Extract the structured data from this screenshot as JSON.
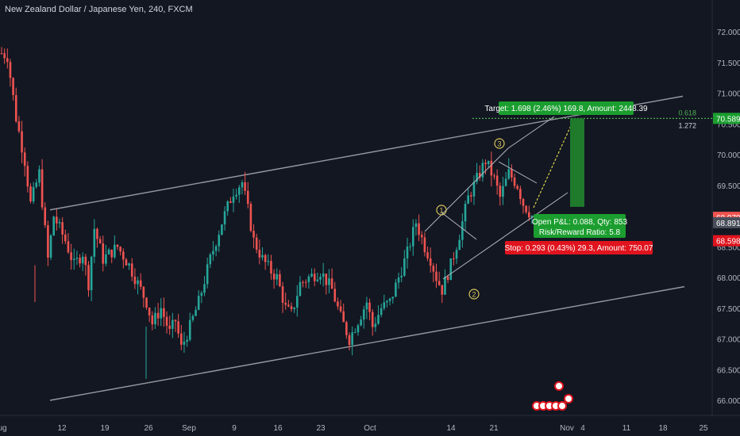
{
  "header": {
    "title": "New Zealand Dollar / Japanese Yen, 240, FXCM"
  },
  "colors": {
    "background": "#131722",
    "up": "#26a69a",
    "down": "#ef5350",
    "channel": "#9598a1",
    "target_box": "#1b9e2f",
    "stop_box": "#e0141e",
    "pattern": "#d6c45a",
    "fib": "#4caf50"
  },
  "chart_data": {
    "type": "candlestick",
    "symbol": "NZDJPY",
    "timeframe": "240",
    "y_ticks": [
      "72.000",
      "71.500",
      "71.000",
      "70.500",
      "70.000",
      "69.500",
      "69.000",
      "68.500",
      "68.000",
      "67.500",
      "67.000",
      "66.500",
      "66.000"
    ],
    "y_range": [
      65.9,
      72.4
    ],
    "x_ticks": [
      "ug",
      "12",
      "19",
      "26",
      "Sep",
      "9",
      "16",
      "23",
      "Oct",
      "14",
      "21",
      "Nov",
      "4",
      "11",
      "18",
      "25"
    ],
    "price_path": [
      [
        0,
        71.65
      ],
      [
        2,
        71.6
      ],
      [
        5,
        70.6
      ],
      [
        8,
        69.9
      ],
      [
        10,
        69.2
      ],
      [
        13,
        69.7
      ],
      [
        16,
        68.3
      ],
      [
        18,
        69.0
      ],
      [
        22,
        68.6
      ],
      [
        25,
        68.2
      ],
      [
        28,
        68.4
      ],
      [
        30,
        67.9
      ],
      [
        32,
        68.8
      ],
      [
        35,
        68.3
      ],
      [
        40,
        68.5
      ],
      [
        44,
        68.2
      ],
      [
        47,
        67.9
      ],
      [
        50,
        67.6
      ],
      [
        52,
        67.25
      ],
      [
        55,
        67.5
      ],
      [
        58,
        67.1
      ],
      [
        60,
        67.3
      ],
      [
        62,
        66.85
      ],
      [
        65,
        67.2
      ],
      [
        68,
        67.6
      ],
      [
        72,
        68.3
      ],
      [
        76,
        68.9
      ],
      [
        80,
        69.4
      ],
      [
        83,
        69.55
      ],
      [
        85,
        69.1
      ],
      [
        87,
        68.6
      ],
      [
        90,
        68.3
      ],
      [
        93,
        68.1
      ],
      [
        95,
        68.0
      ],
      [
        98,
        67.5
      ],
      [
        100,
        67.4
      ],
      [
        103,
        67.9
      ],
      [
        106,
        68.0
      ],
      [
        110,
        68.1
      ],
      [
        114,
        67.8
      ],
      [
        117,
        67.35
      ],
      [
        120,
        67.0
      ],
      [
        123,
        67.3
      ],
      [
        126,
        67.6
      ],
      [
        128,
        67.2
      ],
      [
        131,
        67.5
      ],
      [
        134,
        67.6
      ],
      [
        137,
        68.0
      ],
      [
        140,
        68.4
      ],
      [
        143,
        68.9
      ],
      [
        146,
        68.5
      ],
      [
        148,
        68.3
      ],
      [
        150,
        68.0
      ],
      [
        152,
        67.8
      ],
      [
        155,
        68.2
      ],
      [
        158,
        68.7
      ],
      [
        161,
        69.3
      ],
      [
        164,
        69.6
      ],
      [
        167,
        69.9
      ],
      [
        170,
        69.6
      ],
      [
        172,
        69.3
      ],
      [
        175,
        69.7
      ],
      [
        178,
        69.5
      ],
      [
        180,
        69.2
      ],
      [
        183,
        69.0
      ]
    ],
    "channel_upper": {
      "start": [
        63,
        69.1
      ],
      "end": [
        860,
        70.95
      ]
    },
    "channel_lower": {
      "start": [
        63,
        66.0
      ],
      "end": [
        862,
        67.85
      ]
    },
    "pattern_points": [
      {
        "label": "1",
        "time": 146,
        "price": 68.9
      },
      {
        "label": "2",
        "time": 157,
        "price": 67.75
      },
      {
        "label": "3",
        "time": 172,
        "price": 70.1
      }
    ],
    "position": {
      "target_price": 70.589,
      "entry_price": 68.891,
      "stop_price": 68.598,
      "target_label": "Target: 1.698 (2.46%) 169.8, Amount: 2448.39",
      "open_label": "Open P&L: 0.088, Qty: 853",
      "ratio_label": "Risk/Reward Ratio: 5.8",
      "stop_label": "Stop: 0.293 (0.43%) 29.3, Amount: 750.07"
    },
    "fib": {
      "level": "0.618",
      "ratio": "1.272",
      "price": 70.589
    },
    "price_labels": [
      {
        "text": "70.589",
        "price": 70.589,
        "color": "#1b9e2f"
      },
      {
        "text": "68.979",
        "price": 68.979,
        "color": "#ef5350"
      },
      {
        "text": "68.891",
        "price": 68.891,
        "color": "#4a4e5a"
      },
      {
        "text": "68.598",
        "price": 68.598,
        "color": "#e0141e"
      }
    ]
  }
}
